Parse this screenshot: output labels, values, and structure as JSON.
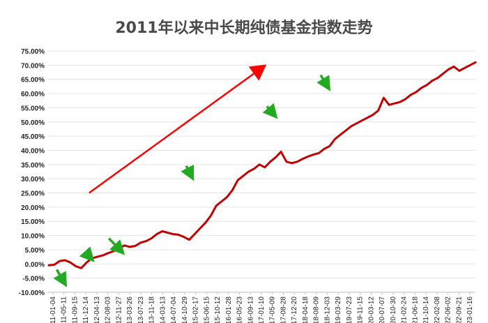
{
  "chart_data": {
    "type": "line",
    "title": "2011年以来中长期纯债基金指数走势",
    "xlabel": "",
    "ylabel": "",
    "ylim": [
      -10,
      75
    ],
    "y_ticks": [
      "75.00%",
      "70.00%",
      "65.00%",
      "60.00%",
      "55.00%",
      "50.00%",
      "45.00%",
      "40.00%",
      "35.00%",
      "30.00%",
      "25.00%",
      "20.00%",
      "15.00%",
      "10.00%",
      "5.00%",
      "0.00%",
      "-5.00%",
      "-10.00%"
    ],
    "x_ticks": [
      "2011-01-04",
      "2011-05-11",
      "2011-09-15",
      "2011-12-14",
      "2012-04-13",
      "2012-08-03",
      "2012-11-27",
      "2013-03-26",
      "2013-07-23",
      "2013-11-18",
      "2014-03-13",
      "2014-07-04",
      "2014-10-29",
      "2015-02-17",
      "2015-06-15",
      "2015-10-12",
      "2016-01-28",
      "2016-05-23",
      "2016-09-13",
      "2017-01-10",
      "2017-05-09",
      "2017-08-28",
      "2017-12-20",
      "2018-04-18",
      "2018-08-09",
      "2018-12-03",
      "2019-03-29",
      "2019-07-23",
      "2019-11-15",
      "2020-03-12",
      "2020-07-07",
      "2020-10-30",
      "2021-02-24",
      "2021-06-18",
      "2021-10-14",
      "2022-02-08",
      "2022-06-02",
      "2022-09-21",
      "2023-01-16"
    ],
    "grid": true,
    "legend": "none",
    "series": [
      {
        "color": "#c00000",
        "values": [
          -0.5,
          -0.3,
          1.0,
          1.3,
          0.5,
          -0.8,
          -1.5,
          0.5,
          2.0,
          2.5,
          3.0,
          3.8,
          4.5,
          5.5,
          6.5,
          6.0,
          6.3,
          7.5,
          8.0,
          9.0,
          10.5,
          11.5,
          11.0,
          10.5,
          10.3,
          9.5,
          8.5,
          10.5,
          12.5,
          14.5,
          17.0,
          20.5,
          22.0,
          23.5,
          26.0,
          29.5,
          31.0,
          32.5,
          33.5,
          35.0,
          34.0,
          36.0,
          37.5,
          39.5,
          36.0,
          35.5,
          36.0,
          37.0,
          37.8,
          38.5,
          39.0,
          40.5,
          41.5,
          44.0,
          45.5,
          47.0,
          48.5,
          49.5,
          50.5,
          51.5,
          52.5,
          54.0,
          58.5,
          56.0,
          56.5,
          57.0,
          58.0,
          59.5,
          60.5,
          62.0,
          63.0,
          64.5,
          65.5,
          67.0,
          68.5,
          69.5,
          68.0,
          69.0,
          70.0,
          71.0
        ]
      }
    ],
    "annotations": {
      "trend_arrow": {
        "color": "#ff0000",
        "from": [
          3.3,
          25.0
        ],
        "to": [
          19.2,
          69.5
        ]
      },
      "drawdown_arrows": {
        "color": "#22aa22",
        "items": [
          {
            "from": [
              0.35,
              -2.0
            ],
            "to": [
              0.95,
              -6.0
            ]
          },
          {
            "from": [
              3.0,
              4.0
            ],
            "to": [
              3.35,
              2.5
            ]
          },
          {
            "from": [
              5.1,
              9.0
            ],
            "to": [
              6.1,
              5.0
            ]
          },
          {
            "from": [
              12.15,
              34.5
            ],
            "to": [
              12.55,
              31.5
            ]
          },
          {
            "from": [
              19.5,
              55.5
            ],
            "to": [
              20.05,
              53.0
            ]
          },
          {
            "from": [
              24.4,
              66.5
            ],
            "to": [
              24.95,
              63.0
            ]
          }
        ]
      }
    }
  }
}
